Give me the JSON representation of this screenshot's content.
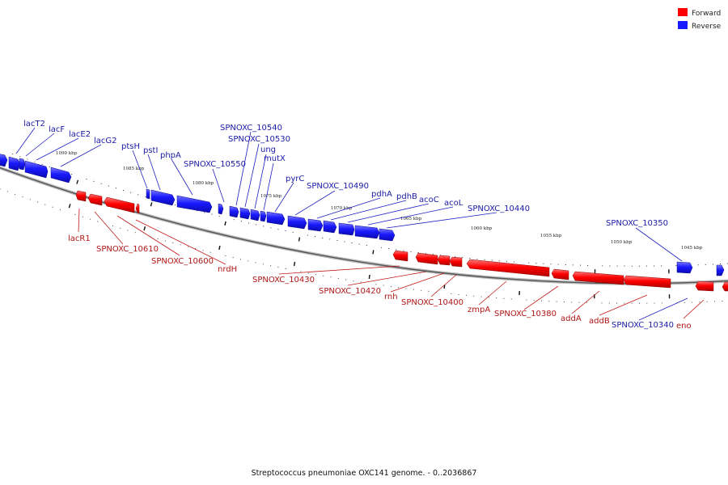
{
  "legend": {
    "forward_label": "Forward",
    "reverse_label": "Reverse",
    "forward_color": "#ff0000",
    "reverse_color": "#1a1aff"
  },
  "footer": "Streptococcus pneumoniae OXC141 genome. - 0..2036867",
  "scale_labels": [
    "1090 kbp",
    "1085 kbp",
    "1080 kbp",
    "1075 kbp",
    "1070 kbp",
    "1065 kbp",
    "1060 kbp",
    "1055 kbp",
    "1050 kbp",
    "1045 kbp"
  ],
  "reverse_genes": [
    "lacT2",
    "lacF",
    "lacE2",
    "lacG2",
    "ptsH",
    "pstI",
    "phpA",
    "SPNOXC_10540",
    "SPNOXC_10530",
    "ung",
    "mutX",
    "SPNOXC_10550",
    "pyrC",
    "SPNOXC_10490",
    "pdhA",
    "pdhB",
    "acoC",
    "acoL",
    "SPNOXC_10440",
    "SPNOXC_10350",
    "SPNOXC_10340"
  ],
  "forward_genes": [
    "lacR1",
    "SPNOXC_10610",
    "SPNOXC_10600",
    "nrdH",
    "SPNOXC_10430",
    "SPNOXC_10420",
    "rnh",
    "SPNOXC_10400",
    "zmpA",
    "SPNOXC_10380",
    "addA",
    "addB",
    "eno"
  ]
}
